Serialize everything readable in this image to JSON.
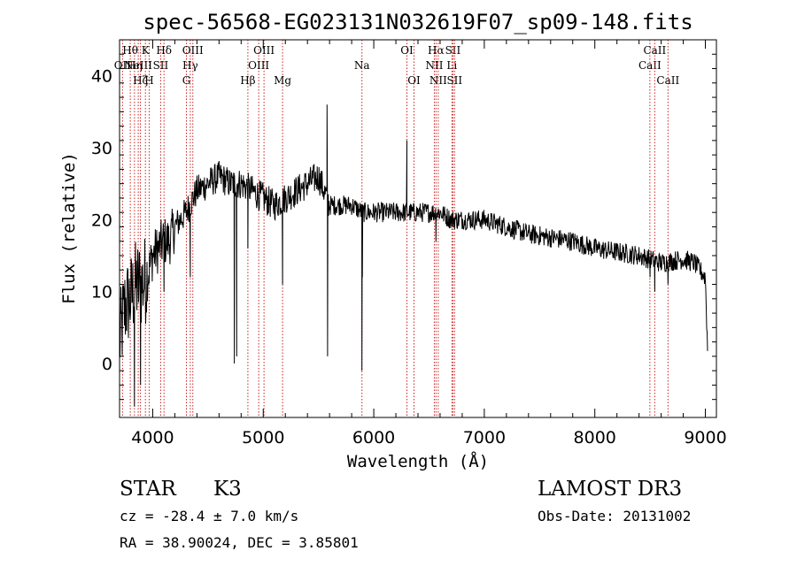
{
  "chart_data": {
    "type": "line",
    "title": "spec-56568-EG023131N032619F07_sp09-148.fits",
    "xlabel": "Wavelength (Å)",
    "ylabel": "Flux (relative)",
    "xlim": [
      3700,
      9100
    ],
    "ylim": [
      -7.5,
      45
    ],
    "xticks": [
      4000,
      5000,
      6000,
      7000,
      8000,
      9000
    ],
    "yticks": [
      0,
      10,
      20,
      30,
      40
    ],
    "continuum": [
      {
        "x": 3700,
        "y": 3
      },
      {
        "x": 3750,
        "y": 8
      },
      {
        "x": 3800,
        "y": 9
      },
      {
        "x": 3850,
        "y": 11
      },
      {
        "x": 3900,
        "y": 11
      },
      {
        "x": 3950,
        "y": 12
      },
      {
        "x": 4000,
        "y": 15
      },
      {
        "x": 4050,
        "y": 16
      },
      {
        "x": 4100,
        "y": 17
      },
      {
        "x": 4150,
        "y": 17
      },
      {
        "x": 4200,
        "y": 19
      },
      {
        "x": 4300,
        "y": 21
      },
      {
        "x": 4400,
        "y": 24
      },
      {
        "x": 4500,
        "y": 25
      },
      {
        "x": 4600,
        "y": 26
      },
      {
        "x": 4700,
        "y": 25
      },
      {
        "x": 4800,
        "y": 25
      },
      {
        "x": 4900,
        "y": 24
      },
      {
        "x": 5000,
        "y": 23
      },
      {
        "x": 5100,
        "y": 22
      },
      {
        "x": 5200,
        "y": 23
      },
      {
        "x": 5300,
        "y": 24
      },
      {
        "x": 5400,
        "y": 25
      },
      {
        "x": 5500,
        "y": 26
      },
      {
        "x": 5600,
        "y": 22
      },
      {
        "x": 5700,
        "y": 22
      },
      {
        "x": 5800,
        "y": 22
      },
      {
        "x": 5900,
        "y": 21
      },
      {
        "x": 6000,
        "y": 21
      },
      {
        "x": 6100,
        "y": 21
      },
      {
        "x": 6200,
        "y": 21
      },
      {
        "x": 6300,
        "y": 21
      },
      {
        "x": 6400,
        "y": 21
      },
      {
        "x": 6500,
        "y": 21
      },
      {
        "x": 6600,
        "y": 21
      },
      {
        "x": 6700,
        "y": 20
      },
      {
        "x": 6800,
        "y": 20
      },
      {
        "x": 6900,
        "y": 20
      },
      {
        "x": 7000,
        "y": 20
      },
      {
        "x": 7200,
        "y": 19
      },
      {
        "x": 7400,
        "y": 18
      },
      {
        "x": 7600,
        "y": 17.5
      },
      {
        "x": 7800,
        "y": 17
      },
      {
        "x": 8000,
        "y": 16
      },
      {
        "x": 8200,
        "y": 15.5
      },
      {
        "x": 8400,
        "y": 15
      },
      {
        "x": 8600,
        "y": 14
      },
      {
        "x": 8800,
        "y": 14.5
      },
      {
        "x": 8900,
        "y": 14
      },
      {
        "x": 9000,
        "y": 12
      },
      {
        "x": 9020,
        "y": 2
      }
    ],
    "features": [
      {
        "x": 3835,
        "y": -6
      },
      {
        "x": 3890,
        "y": -3
      },
      {
        "x": 4102,
        "y": 10
      },
      {
        "x": 4340,
        "y": 12
      },
      {
        "x": 4738,
        "y": 0
      },
      {
        "x": 4760,
        "y": 1
      },
      {
        "x": 4861,
        "y": 16
      },
      {
        "x": 5175,
        "y": 11
      },
      {
        "x": 5577,
        "y": 36
      },
      {
        "x": 5582,
        "y": 1
      },
      {
        "x": 5893,
        "y": -1
      },
      {
        "x": 5897,
        "y": 12
      },
      {
        "x": 6300,
        "y": 31
      },
      {
        "x": 6563,
        "y": 17
      },
      {
        "x": 8500,
        "y": 12
      },
      {
        "x": 8542,
        "y": 10
      },
      {
        "x": 8662,
        "y": 11
      }
    ],
    "line_markers": [
      {
        "x": 3727,
        "row": 2,
        "label": "OII"
      },
      {
        "x": 3797,
        "row": 1,
        "label": "Hθ"
      },
      {
        "x": 3835,
        "row": 2,
        "label": "Hη"
      },
      {
        "x": 3869,
        "row": 2,
        "label": "NeIII"
      },
      {
        "x": 3889,
        "row": 3,
        "label": "Hζ"
      },
      {
        "x": 3934,
        "row": 1,
        "label": "K"
      },
      {
        "x": 3968,
        "row": 3,
        "label": "H"
      },
      {
        "x": 4072,
        "row": 2,
        "label": "SII"
      },
      {
        "x": 4102,
        "row": 1,
        "label": "Hδ"
      },
      {
        "x": 4305,
        "row": 3,
        "label": "G"
      },
      {
        "x": 4340,
        "row": 2,
        "label": "Hγ"
      },
      {
        "x": 4363,
        "row": 1,
        "label": "OIII"
      },
      {
        "x": 4861,
        "row": 3,
        "label": "Hβ"
      },
      {
        "x": 4959,
        "row": 2,
        "label": "OIII"
      },
      {
        "x": 5007,
        "row": 1,
        "label": "OIII"
      },
      {
        "x": 5175,
        "row": 3,
        "label": "Mg"
      },
      {
        "x": 5893,
        "row": 2,
        "label": "Na"
      },
      {
        "x": 6300,
        "row": 1,
        "label": "OI"
      },
      {
        "x": 6364,
        "row": 3,
        "label": "OI"
      },
      {
        "x": 6548,
        "row": 2,
        "label": "NII"
      },
      {
        "x": 6563,
        "row": 1,
        "label": "Hα"
      },
      {
        "x": 6583,
        "row": 3,
        "label": "NII"
      },
      {
        "x": 6707,
        "row": 2,
        "label": "Li"
      },
      {
        "x": 6716,
        "row": 1,
        "label": "SII"
      },
      {
        "x": 6731,
        "row": 3,
        "label": "SII"
      },
      {
        "x": 8498,
        "row": 2,
        "label": "CaII"
      },
      {
        "x": 8542,
        "row": 1,
        "label": "CaII"
      },
      {
        "x": 8662,
        "row": 3,
        "label": "CaII"
      }
    ]
  },
  "info": {
    "object_class": "STAR",
    "subclass": "K3",
    "survey": "LAMOST DR3",
    "redshift": "cz = -28.4 ± 7.0 km/s",
    "obs_date": "Obs-Date: 20131002",
    "coords": "RA =  38.90024, DEC =   3.85801"
  }
}
